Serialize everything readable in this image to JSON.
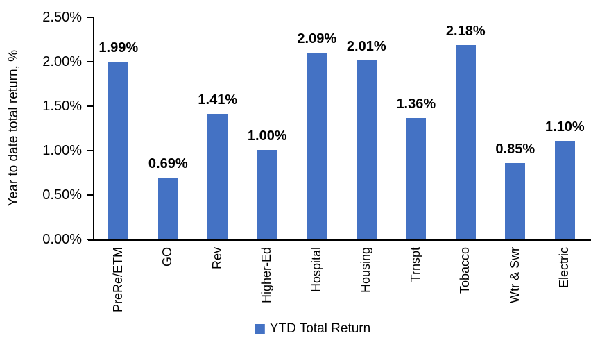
{
  "chart_data": {
    "type": "bar",
    "title": "",
    "ylabel": "Year to date total return, %",
    "xlabel": "",
    "ylim": [
      0,
      2.5
    ],
    "y_ticks": [
      "0.00%",
      "0.50%",
      "1.00%",
      "1.50%",
      "2.00%",
      "2.50%"
    ],
    "grid": false,
    "legend_position": "bottom",
    "series_name": "YTD Total Return",
    "bar_color": "#4472C4",
    "axis_color": "#000000",
    "categories": [
      "PreRe/ETM",
      "GO",
      "Rev",
      "Higher-Ed",
      "Hospital",
      "Housing",
      "Trnspt",
      "Tobacco",
      "Wtr & Swr",
      "Electric"
    ],
    "values": [
      1.99,
      0.69,
      1.41,
      1.0,
      2.09,
      2.01,
      1.36,
      2.18,
      0.85,
      1.1
    ],
    "value_labels": [
      "1.99%",
      "0.69%",
      "1.41%",
      "1.00%",
      "2.09%",
      "2.01%",
      "1.36%",
      "2.18%",
      "0.85%",
      "1.10%"
    ]
  }
}
